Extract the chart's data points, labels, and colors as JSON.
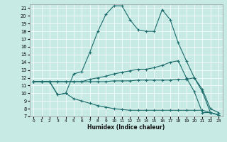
{
  "xlabel": "Humidex (Indice chaleur)",
  "bg_color": "#c8eae4",
  "line_color": "#1a6b6b",
  "xlim": [
    -0.5,
    23.5
  ],
  "ylim": [
    7,
    21.5
  ],
  "yticks": [
    7,
    8,
    9,
    10,
    11,
    12,
    13,
    14,
    15,
    16,
    17,
    18,
    19,
    20,
    21
  ],
  "xticks": [
    0,
    1,
    2,
    3,
    4,
    5,
    6,
    7,
    8,
    9,
    10,
    11,
    12,
    13,
    14,
    15,
    16,
    17,
    18,
    19,
    20,
    21,
    22,
    23
  ],
  "lines": [
    {
      "x": [
        0,
        1,
        2,
        3,
        4,
        5,
        6,
        7,
        8,
        9,
        10,
        11,
        12,
        13,
        14,
        15,
        16,
        17,
        18,
        19,
        20,
        21,
        22,
        23
      ],
      "y": [
        11.5,
        11.5,
        11.5,
        9.8,
        10.0,
        12.5,
        12.8,
        15.3,
        18.0,
        20.2,
        21.3,
        21.3,
        19.5,
        18.2,
        18.0,
        18.0,
        20.8,
        19.5,
        16.5,
        14.2,
        12.0,
        10.2,
        7.5,
        7.2
      ]
    },
    {
      "x": [
        0,
        1,
        2,
        3,
        4,
        5,
        6,
        7,
        8,
        9,
        10,
        11,
        12,
        13,
        14,
        15,
        16,
        17,
        18,
        19,
        20,
        21,
        22,
        23
      ],
      "y": [
        11.5,
        11.5,
        11.5,
        11.5,
        11.5,
        11.5,
        11.5,
        11.8,
        12.0,
        12.2,
        12.5,
        12.7,
        12.9,
        13.1,
        13.1,
        13.3,
        13.6,
        14.0,
        14.2,
        12.0,
        10.2,
        7.5,
        7.5,
        7.2
      ]
    },
    {
      "x": [
        0,
        1,
        2,
        3,
        4,
        5,
        6,
        7,
        8,
        9,
        10,
        11,
        12,
        13,
        14,
        15,
        16,
        17,
        18,
        19,
        20,
        21,
        22,
        23
      ],
      "y": [
        11.5,
        11.5,
        11.5,
        11.5,
        11.5,
        11.5,
        11.5,
        11.5,
        11.5,
        11.5,
        11.6,
        11.6,
        11.6,
        11.7,
        11.7,
        11.7,
        11.7,
        11.7,
        11.8,
        11.8,
        12.0,
        10.5,
        8.0,
        7.5
      ]
    },
    {
      "x": [
        0,
        1,
        2,
        3,
        4,
        5,
        6,
        7,
        8,
        9,
        10,
        11,
        12,
        13,
        14,
        15,
        16,
        17,
        18,
        19,
        20,
        21,
        22,
        23
      ],
      "y": [
        11.5,
        11.5,
        11.5,
        9.8,
        10.0,
        9.3,
        9.0,
        8.7,
        8.4,
        8.2,
        8.0,
        7.9,
        7.8,
        7.8,
        7.8,
        7.8,
        7.8,
        7.8,
        7.8,
        7.8,
        7.8,
        7.8,
        7.5,
        7.2
      ]
    }
  ]
}
